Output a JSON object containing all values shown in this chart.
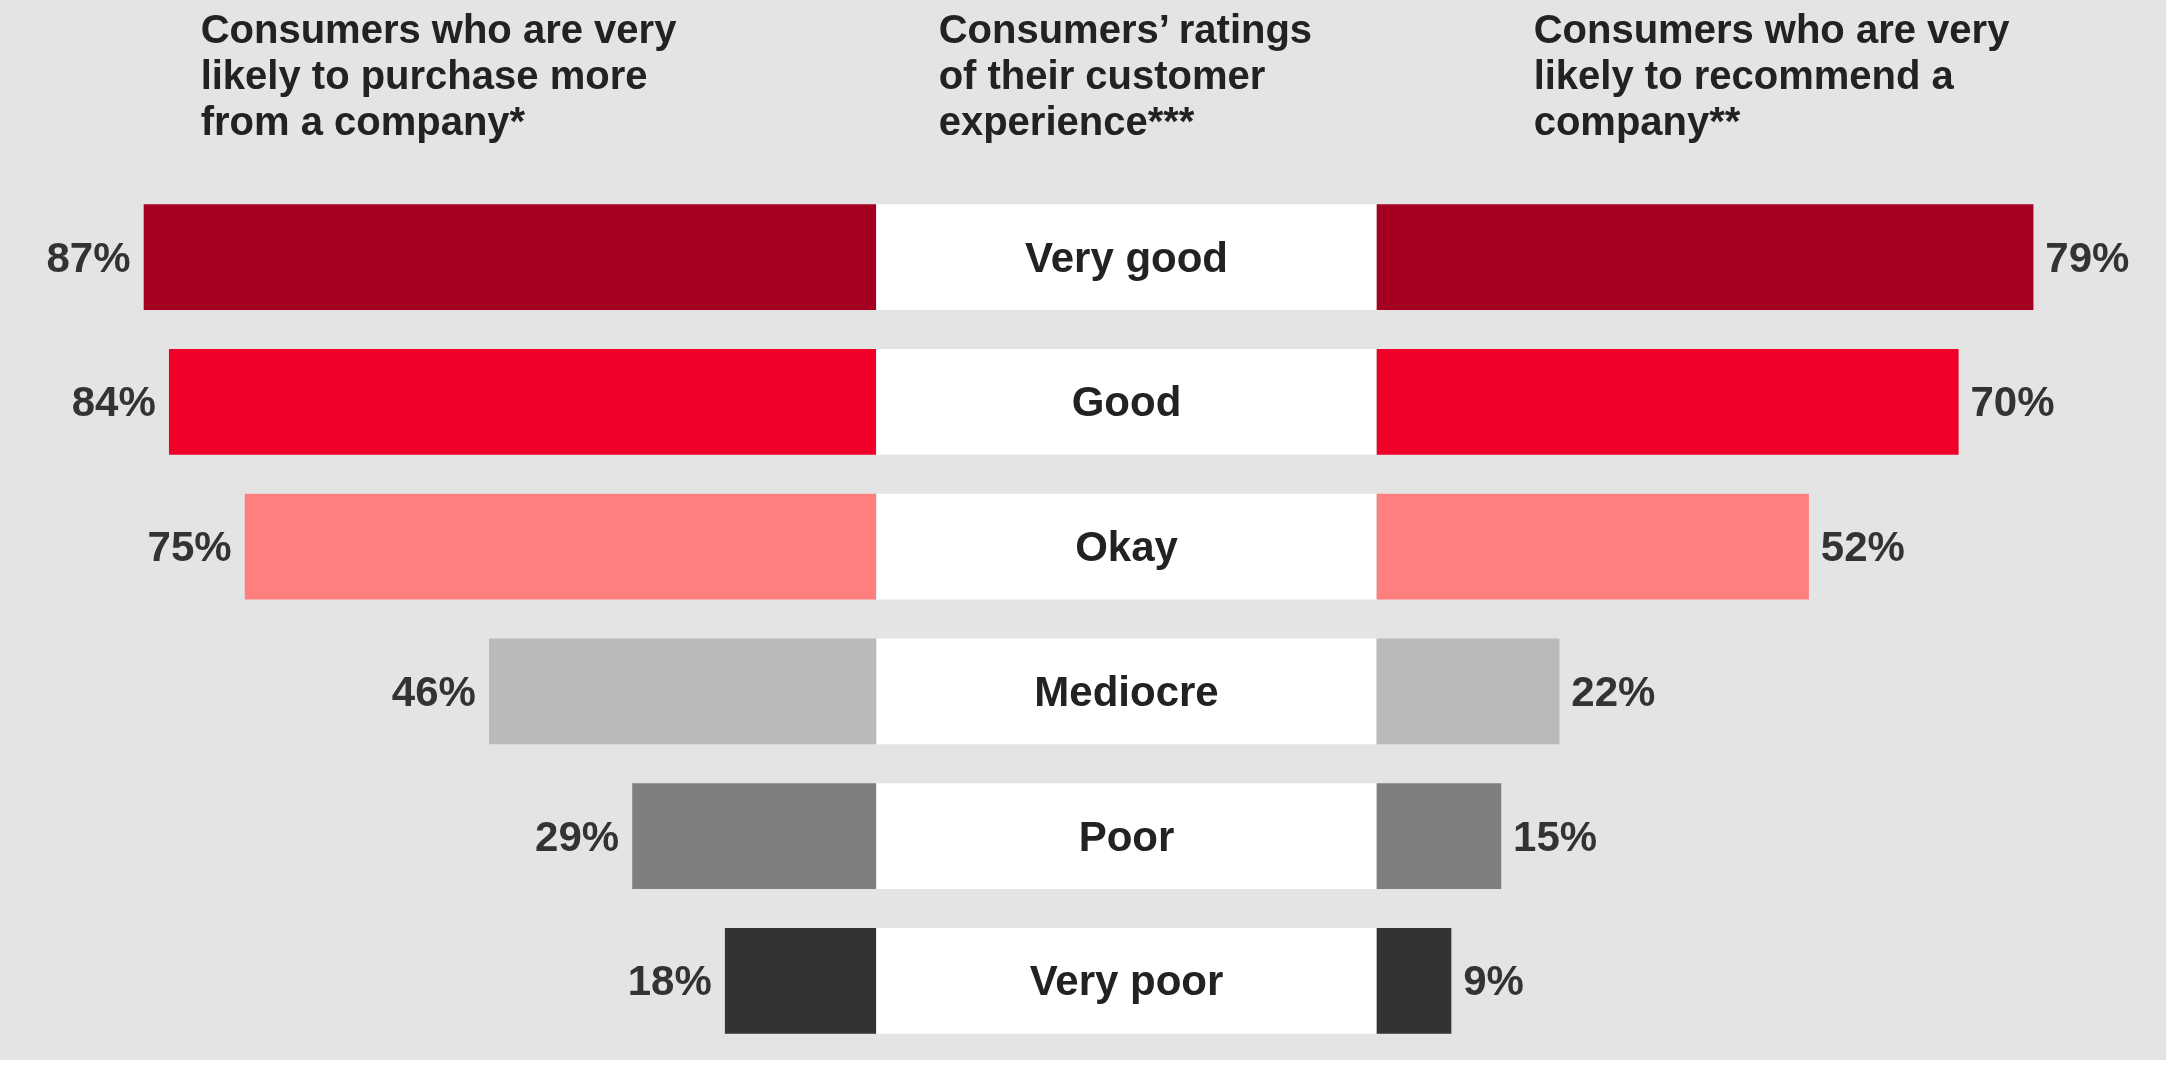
{
  "chart_data": [
    {
      "type": "bar",
      "orientation": "horizontal",
      "title": "Consumers who are very likely to purchase more from a company*",
      "categories": [
        null,
        null,
        null,
        null,
        null,
        null
      ],
      "values": [
        87,
        84,
        75,
        46,
        29,
        18
      ],
      "colors": [
        "#a50021",
        "#ef0028",
        "#ff7f7f",
        "#bababa",
        "#7f7f7f",
        "#333333"
      ],
      "value_labels": [
        "87%",
        "84%",
        "75%",
        "46%",
        "29%",
        "18%"
      ],
      "xlim": [
        104,
        0
      ],
      "tick_labels": false
    },
    {
      "type": "other",
      "title": "Consumers’ ratings of their customer experience***",
      "categories": [
        "Very good",
        "Good",
        "Okay",
        "Mediocre",
        "Poor",
        "Very poor"
      ]
    },
    {
      "type": "bar",
      "orientation": "horizontal",
      "title": "Consumers who are very likely to recommend a company**",
      "categories": [
        null,
        null,
        null,
        null,
        null,
        null
      ],
      "values": [
        79,
        70,
        52,
        22,
        15,
        9
      ],
      "colors": [
        "#a50021",
        "#ef0028",
        "#ff7f7f",
        "#bababa",
        "#7f7f7f",
        "#333333"
      ],
      "value_labels": [
        "79%",
        "70%",
        "52%",
        "22%",
        "15%",
        "9%"
      ],
      "xlim": [
        0,
        95
      ],
      "tick_labels": false
    }
  ]
}
